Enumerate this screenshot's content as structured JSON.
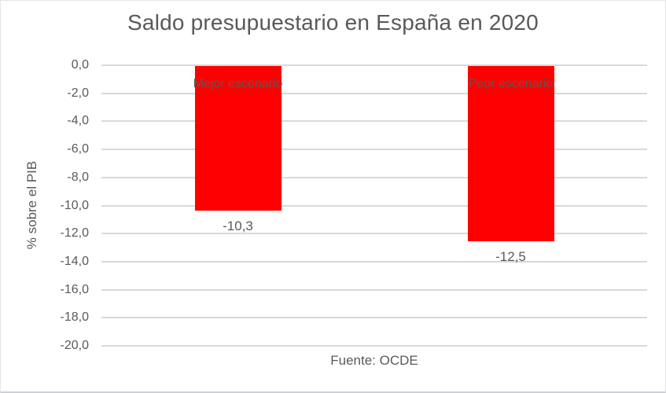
{
  "chart_data": {
    "type": "bar",
    "title": "Saldo presupuestario en España en 2020",
    "categories": [
      "Mejor escenario",
      "Peor escenario"
    ],
    "values": [
      -10.3,
      -12.5
    ],
    "value_labels": [
      "-10,3",
      "-12,5"
    ],
    "xlabel": "Fuente: OCDE",
    "ylabel": "% sobre el PIB",
    "ylim": [
      -20,
      0
    ],
    "ytick_step": 2,
    "ytick_labels": [
      "0,0",
      "-2,0",
      "-4,0",
      "-6,0",
      "-8,0",
      "-10,0",
      "-12,0",
      "-14,0",
      "-16,0",
      "-18,0",
      "-20,0"
    ],
    "legend": "none",
    "grid": true,
    "colors": {
      "bar": "#ff0000",
      "gridline": "#d9d9d9",
      "text": "#595959",
      "background": "#ffffff"
    }
  }
}
